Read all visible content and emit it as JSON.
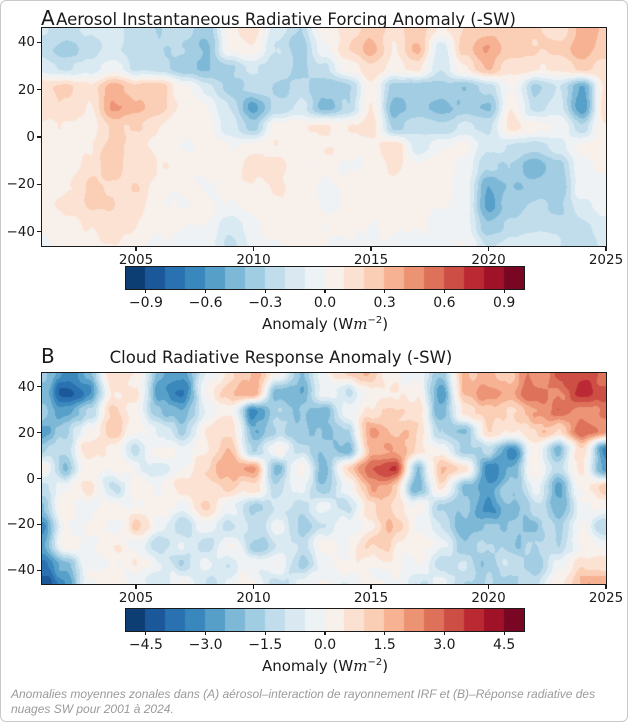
{
  "page": {
    "caption": "Anomalies moyennes zonales dans (A) aérosol–interaction de rayonnement IRF et (B)–Réponse radiative des nuages SW pour 2001 à 2024."
  },
  "colormap": {
    "name": "RdBu_r",
    "stops": [
      "#053061",
      "#2166ac",
      "#4393c3",
      "#92c5de",
      "#d1e5f0",
      "#f7f7f7",
      "#fddbc7",
      "#f4a582",
      "#d6604d",
      "#b2182b",
      "#67001f"
    ]
  },
  "chart_data": [
    {
      "type": "heatmap",
      "panel_label": "A",
      "title": "Aerosol Instantaneous Radiative Forcing Anomaly (-SW)",
      "xlabel": "",
      "ylabel": "",
      "x_range": [
        2001,
        2025
      ],
      "y_range": [
        -46,
        46
      ],
      "x_ticks": [
        2005,
        2010,
        2015,
        2020,
        2025
      ],
      "x_tick_labels": [
        "2005",
        "2010",
        "2015",
        "2020",
        "2025"
      ],
      "y_ticks": [
        40,
        20,
        0,
        -20,
        -40
      ],
      "y_tick_labels": [
        "40",
        "20",
        "0",
        "−20",
        "−40"
      ],
      "colorbar": {
        "range": [
          -1,
          1
        ],
        "levels": 20,
        "tick_values": [
          -0.9,
          -0.6,
          -0.3,
          0.0,
          0.3,
          0.6,
          0.9
        ],
        "tick_labels": [
          "−0.9",
          "−0.6",
          "−0.3",
          "0.0",
          "0.3",
          "0.6",
          "0.9"
        ],
        "label_prefix": "Anomaly (W",
        "label_var": "m",
        "label_sup": "−2",
        "label_suffix": ")"
      },
      "grid": {
        "years": [
          2001,
          2025
        ],
        "lat_top": 46,
        "lat_bottom": -46,
        "values": [
          [
            -0.15,
            -0.2,
            -0.15,
            -0.1,
            -0.2,
            -0.25,
            -0.2,
            -0.3,
            0.15,
            0.2,
            -0.1,
            -0.25,
            0.1,
            0.2,
            0.3,
            0.2,
            0.35,
            0.15,
            0.25,
            0.3,
            0.25,
            0.3,
            0.2,
            0.4,
            0.35
          ],
          [
            -0.2,
            -0.3,
            -0.2,
            -0.1,
            -0.2,
            -0.25,
            -0.25,
            -0.35,
            0.1,
            0.15,
            -0.15,
            -0.35,
            0.05,
            0.25,
            0.4,
            0.15,
            0.4,
            -0.1,
            0.3,
            0.45,
            0.3,
            0.25,
            0.3,
            0.45,
            0.3
          ],
          [
            -0.1,
            -0.15,
            -0.1,
            0.05,
            -0.15,
            -0.2,
            -0.3,
            -0.35,
            -0.25,
            -0.1,
            -0.2,
            -0.3,
            -0.15,
            0.1,
            0.25,
            0.1,
            0.2,
            -0.15,
            0.15,
            0.35,
            0.2,
            0.15,
            0.2,
            0.3,
            0.25
          ],
          [
            0.25,
            0.3,
            0.2,
            0.45,
            0.3,
            0.35,
            0.1,
            -0.1,
            -0.3,
            -0.2,
            -0.25,
            -0.2,
            -0.35,
            -0.3,
            0.1,
            -0.3,
            -0.35,
            -0.3,
            -0.35,
            -0.2,
            0.1,
            -0.3,
            -0.15,
            -0.45,
            0.2
          ],
          [
            0.2,
            0.25,
            0.15,
            0.5,
            0.4,
            0.3,
            0.15,
            0.05,
            -0.15,
            -0.5,
            -0.2,
            -0.1,
            -0.4,
            -0.25,
            0.15,
            -0.4,
            -0.3,
            -0.4,
            -0.3,
            -0.35,
            0.15,
            -0.2,
            -0.1,
            -0.5,
            0.25
          ],
          [
            0.1,
            0.15,
            0.1,
            0.3,
            0.25,
            0.15,
            0.1,
            0.1,
            -0.1,
            -0.3,
            0.1,
            0.15,
            0.2,
            0.15,
            0.2,
            -0.25,
            -0.15,
            -0.2,
            -0.1,
            -0.15,
            0.2,
            0.1,
            0.05,
            -0.2,
            0.15
          ],
          [
            0.1,
            0.1,
            0.15,
            0.3,
            0.2,
            0.1,
            0.05,
            0.1,
            0.05,
            0.1,
            0.15,
            0.1,
            0.15,
            0.1,
            0.1,
            0.25,
            -0.1,
            0.05,
            0.1,
            -0.1,
            -0.15,
            -0.2,
            -0.1,
            0.1,
            0.1
          ],
          [
            0.15,
            0.1,
            0.2,
            0.3,
            0.2,
            0.15,
            0.1,
            0.1,
            0.1,
            0.2,
            0.2,
            0.1,
            0.1,
            0.05,
            0.1,
            0.15,
            0.1,
            0.1,
            0.05,
            -0.2,
            -0.25,
            -0.4,
            -0.3,
            0.05,
            0.1
          ],
          [
            0.1,
            0.15,
            0.25,
            0.2,
            0.25,
            0.1,
            0.1,
            0.05,
            0.1,
            0.15,
            0.2,
            0.1,
            0.05,
            0.1,
            0.1,
            0.1,
            0.05,
            0.1,
            0,
            -0.4,
            -0.35,
            -0.3,
            -0.35,
            0,
            0.05
          ],
          [
            0.1,
            0.2,
            0.25,
            0.25,
            0.2,
            0.1,
            0.05,
            0.1,
            0.05,
            0.1,
            0.15,
            0.1,
            0.05,
            0.05,
            0.1,
            0.1,
            0.05,
            0.05,
            0,
            -0.45,
            -0.3,
            -0.2,
            -0.3,
            -0.1,
            0
          ],
          [
            0.1,
            0.15,
            0.2,
            0.2,
            0.15,
            0.1,
            0.05,
            0.05,
            -0.1,
            0.05,
            0.1,
            0.1,
            0.05,
            0.05,
            0.05,
            0.1,
            0.05,
            0,
            0,
            -0.3,
            -0.2,
            -0.15,
            -0.2,
            -0.15,
            -0.1
          ],
          [
            0.05,
            0.1,
            0.15,
            0.15,
            0.1,
            0.05,
            0,
            0,
            -0.15,
            0,
            0.05,
            0.1,
            0.05,
            0,
            0.05,
            0.05,
            0,
            0,
            0.05,
            -0.15,
            -0.1,
            -0.1,
            -0.15,
            -0.2,
            -0.1
          ]
        ]
      },
      "noise": {
        "seed": 7,
        "amp1": 0.07,
        "fx1": 0.045,
        "fy1": 0.03,
        "amp2": 0.045,
        "fx2": 0.12,
        "fy2": 0.08
      }
    },
    {
      "type": "heatmap",
      "panel_label": "B",
      "title": "Cloud Radiative Response Anomaly (-SW)",
      "xlabel": "",
      "ylabel": "",
      "x_range": [
        2001,
        2025
      ],
      "y_range": [
        -46,
        46
      ],
      "x_ticks": [
        2005,
        2010,
        2015,
        2020,
        2025
      ],
      "x_tick_labels": [
        "2005",
        "2010",
        "2015",
        "2020",
        "2025"
      ],
      "y_ticks": [
        40,
        20,
        0,
        -20,
        -40
      ],
      "y_tick_labels": [
        "40",
        "20",
        "0",
        "−20",
        "−40"
      ],
      "colorbar": {
        "range": [
          -5,
          5
        ],
        "levels": 20,
        "tick_values": [
          -4.5,
          -3.0,
          -1.5,
          0.0,
          1.5,
          3.0,
          4.5
        ],
        "tick_labels": [
          "−4.5",
          "−3.0",
          "−1.5",
          "0.0",
          "1.5",
          "3.0",
          "4.5"
        ],
        "label_prefix": "Anomaly (W",
        "label_var": "m",
        "label_sup": "−2",
        "label_suffix": ")"
      },
      "grid": {
        "years": [
          2001,
          2025
        ],
        "lat_top": 46,
        "lat_bottom": -46,
        "values": [
          [
            -1,
            -2.5,
            -1.5,
            1.5,
            1,
            -1.5,
            -2,
            0.5,
            1.5,
            2,
            0.5,
            -1,
            1,
            1.5,
            2,
            1,
            0.5,
            -1.5,
            2,
            2.5,
            2,
            3,
            3.5,
            4,
            3.5
          ],
          [
            -1.5,
            -3.5,
            -2.5,
            1,
            1.5,
            -2,
            -2.5,
            1,
            2,
            2.5,
            -1.5,
            -2,
            0.5,
            -0.5,
            1,
            1.5,
            1,
            -2.5,
            2.5,
            3,
            2.5,
            3.5,
            3,
            4.5,
            4
          ],
          [
            -1,
            -2,
            -1,
            1.5,
            1,
            -1,
            -1.5,
            0.5,
            1,
            -2.5,
            -1,
            -1.5,
            -2,
            0.5,
            1.5,
            2,
            1.5,
            -2,
            1.5,
            2,
            1.5,
            2.5,
            3.5,
            3,
            3.5
          ],
          [
            -2,
            -1,
            0.5,
            2,
            0.5,
            0.5,
            -1,
            1.5,
            1.5,
            -1.5,
            -0.5,
            -1,
            -1.5,
            -0.5,
            2.5,
            1.5,
            2,
            -1,
            -1.5,
            1.5,
            1,
            1.5,
            2,
            3.5,
            2.5
          ],
          [
            -1,
            -0.5,
            1.5,
            1,
            -0.5,
            1,
            0.5,
            1,
            2,
            -0.5,
            1,
            -0.5,
            -1,
            -1.5,
            2,
            2.5,
            1.5,
            0.5,
            -1,
            -0.5,
            -2.5,
            1,
            -1.5,
            2,
            -3
          ],
          [
            0.5,
            -1,
            1,
            0.5,
            0.5,
            -0.5,
            1,
            1.5,
            2.5,
            3,
            -1.5,
            1,
            -1.5,
            1.5,
            3.5,
            4,
            -1.5,
            2,
            1.5,
            -2.5,
            -1.5,
            1.5,
            -1,
            1.5,
            -2.5
          ],
          [
            -0.5,
            0.5,
            1.5,
            -0.5,
            1,
            0.5,
            1.5,
            1,
            2,
            1.5,
            -1,
            0.5,
            -1,
            0.5,
            2.5,
            2,
            -2,
            1.5,
            -1.5,
            -2.5,
            -1,
            0.5,
            -2,
            1,
            2
          ],
          [
            -1.5,
            1,
            0.5,
            1,
            0.5,
            1,
            0.5,
            1.5,
            0.5,
            -1,
            -0.5,
            -0.5,
            0.5,
            -0.5,
            1.5,
            1.5,
            0.5,
            -1,
            -1,
            -2.5,
            -1.5,
            -0.5,
            -1.5,
            0.5,
            1
          ],
          [
            -2.5,
            0.5,
            1,
            0.5,
            1.5,
            0.5,
            -0.5,
            0.5,
            -0.5,
            -0.5,
            0.5,
            -1,
            -0.5,
            0.5,
            1,
            2,
            0.5,
            -0.5,
            -1.5,
            -1,
            -1,
            -1.5,
            -0.5,
            0.5,
            -0.5
          ],
          [
            -2,
            1,
            0.5,
            1,
            0.5,
            -0.5,
            0.5,
            -0.5,
            0.5,
            -1,
            -0.5,
            -0.5,
            1,
            0.5,
            1.5,
            1.5,
            1,
            0.5,
            -1,
            -0.5,
            -1.5,
            -1,
            -0.5,
            1,
            0.5
          ],
          [
            -3,
            -1.5,
            0.5,
            0.5,
            1,
            0.5,
            -0.5,
            0.5,
            -0.5,
            0.5,
            0.5,
            -1,
            0.5,
            1,
            0.5,
            1,
            0.5,
            -0.5,
            -0.5,
            -1,
            -0.5,
            -1.5,
            0.5,
            1.5,
            1
          ],
          [
            -3.5,
            -2,
            0.5,
            1,
            0.5,
            -0.5,
            0.5,
            -0.5,
            0.5,
            1,
            -0.5,
            0.5,
            1,
            0.5,
            1,
            0.5,
            -0.5,
            0.5,
            -1,
            -0.5,
            -1,
            -0.5,
            1,
            2,
            2.5
          ]
        ]
      },
      "noise": {
        "seed": 31,
        "amp1": 0.8,
        "fx1": 0.05,
        "fy1": 0.033,
        "amp2": 0.5,
        "fx2": 0.13,
        "fy2": 0.085
      }
    }
  ]
}
